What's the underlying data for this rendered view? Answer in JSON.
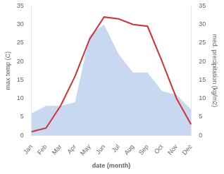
{
  "chart_data": {
    "type": "line",
    "categories": [
      "Jan",
      "Feb",
      "Mar",
      "Apr",
      "May",
      "Jun",
      "Jul",
      "Aug",
      "Sep",
      "Oct",
      "Nov",
      "Dec"
    ],
    "xlabel": "date (month)",
    "ylabel": "max temp (C)",
    "y2label": "med. precipitation (kg/m2)",
    "series": [
      {
        "type": "area",
        "axis": "y2",
        "color": "#c8d8f0",
        "values": [
          6,
          8,
          8,
          9,
          27,
          30,
          22,
          17,
          17,
          12,
          11,
          7
        ]
      },
      {
        "type": "line",
        "color": "#cc3333",
        "values": [
          1,
          2,
          8,
          16,
          26,
          32,
          31.5,
          30,
          29.5,
          20,
          10,
          3
        ]
      }
    ],
    "ylim": [
      0,
      35
    ],
    "yticks": [
      0,
      5,
      10,
      15,
      20,
      25,
      30,
      35
    ],
    "y2lim": [
      0,
      35
    ],
    "y2ticks": [
      0,
      5,
      10,
      15,
      20,
      25,
      30,
      35
    ],
    "grid": false
  }
}
